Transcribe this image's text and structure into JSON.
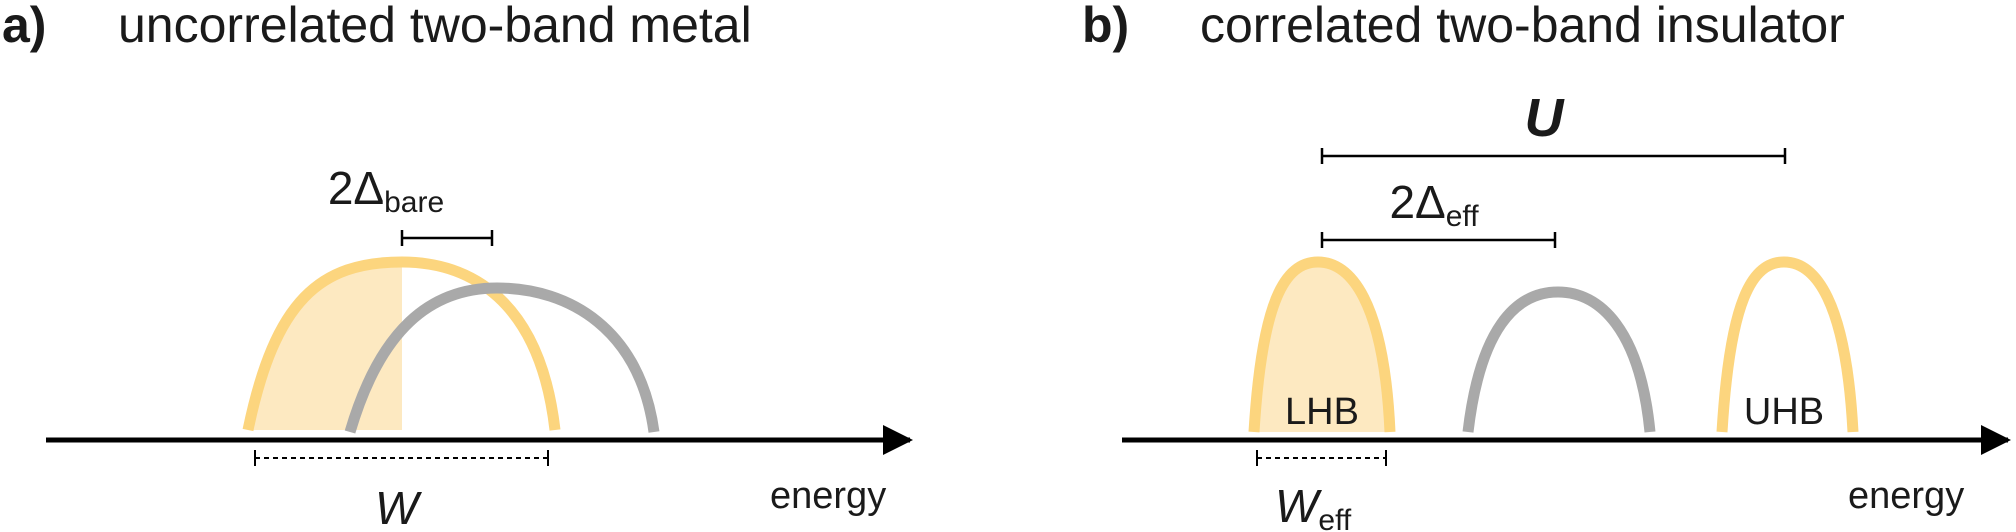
{
  "panel_a": {
    "letter": "a)",
    "title": "uncorrelated two-band metal",
    "gap_label": {
      "base": "2Δ",
      "sub": "bare"
    },
    "width_label": "W",
    "axis_label": "energy"
  },
  "panel_b": {
    "letter": "b)",
    "title": "correlated two-band insulator",
    "interaction_label": "U",
    "gap_label": {
      "base": "2Δ",
      "sub": "eff"
    },
    "width_label": {
      "base": "W",
      "sub": "eff"
    },
    "lower_band": "LHB",
    "upper_band": "UHB",
    "axis_label": "energy"
  },
  "colors": {
    "band_yellow": "#fcd57e",
    "band_fill": "#fde9c1",
    "band_gray": "#a9a9a9",
    "axis": "#000000",
    "text": "#1a1a1a"
  }
}
